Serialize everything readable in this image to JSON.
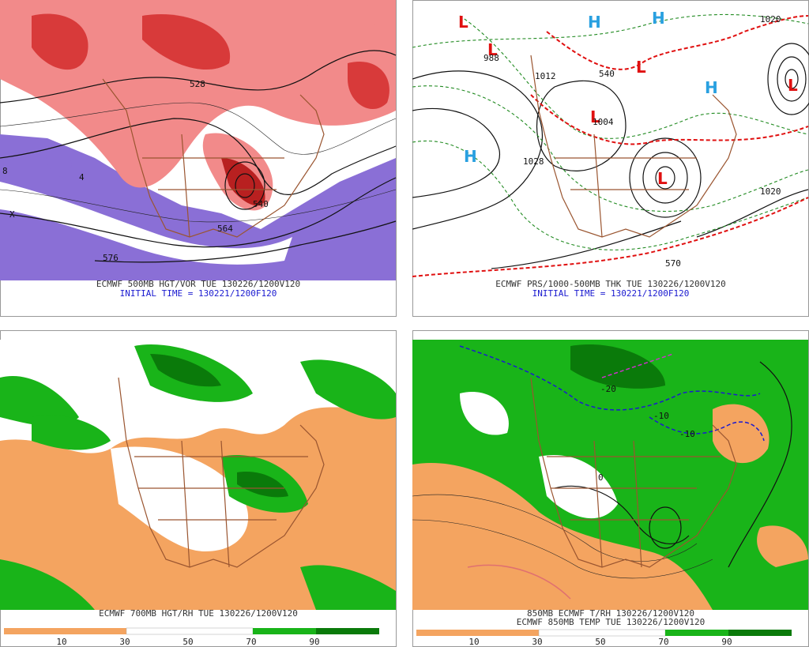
{
  "panels": [
    {
      "caption": "ECMWF 500MB HGT/VOR TUE 130226/1200V120",
      "subcaption": "INITIAL TIME = 130221/1200F120",
      "labels": [
        "528",
        "540",
        "576",
        "564",
        "8",
        "4",
        "X"
      ]
    },
    {
      "caption": "ECMWF PRS/1000-500MB THK TUE 130226/1200V120",
      "subcaption": "INITIAL TIME = 130221/1200F120",
      "labels": [
        "L",
        "L",
        "L",
        "L",
        "L",
        "L",
        "H",
        "H",
        "H",
        "H",
        "1020",
        "1012",
        "1028",
        "1004",
        "1020",
        "540",
        "570",
        "988"
      ]
    },
    {
      "caption": "ECMWF 700MB HGT/RH TUE 130226/1200V120",
      "colorbar_labels": [
        "10",
        "30",
        "50",
        "70",
        "90"
      ]
    },
    {
      "caption": "850MB ECMWF T/RH 130226/1200V120",
      "subcaption": "ECMWF 850MB TEMP TUE 130226/1200V120",
      "labels": [
        "-20",
        "-10",
        "-10",
        "0"
      ],
      "colorbar_labels": [
        "10",
        "30",
        "50",
        "70",
        "90"
      ]
    }
  ]
}
